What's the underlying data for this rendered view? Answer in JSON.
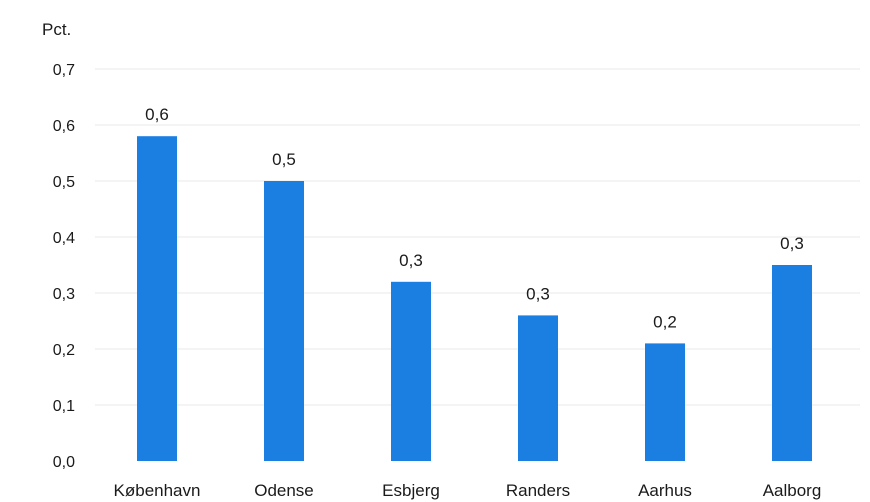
{
  "chart_data": {
    "type": "bar",
    "unit_label": "Pct.",
    "categories": [
      "København",
      "Odense",
      "Esbjerg",
      "Randers",
      "Aarhus",
      "Aalborg"
    ],
    "values": [
      0.58,
      0.5,
      0.32,
      0.26,
      0.21,
      0.35
    ],
    "data_labels": [
      "0,6",
      "0,5",
      "0,3",
      "0,3",
      "0,2",
      "0,3"
    ],
    "ylim": [
      0,
      0.7
    ],
    "yticks": [
      "0,0",
      "0,1",
      "0,2",
      "0,3",
      "0,4",
      "0,5",
      "0,6",
      "0,7"
    ],
    "bar_color": "#1a7fe0",
    "grid": true,
    "grid_color": "#e8e8e8"
  }
}
